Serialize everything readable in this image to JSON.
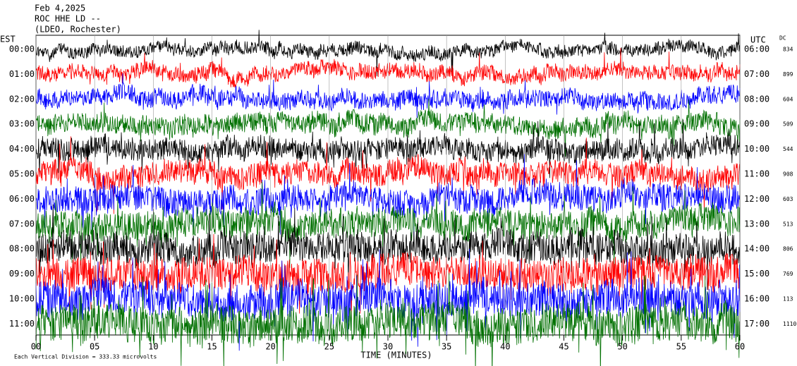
{
  "header": {
    "date": "Feb 4,2025",
    "station": "ROC HHE LD --",
    "location": "(LDEO, Rochester)"
  },
  "left_axis_title": "EST",
  "right_axis_title": "UTC",
  "dc_title": "DC",
  "rows": [
    {
      "est": "00:00",
      "utc": "06:00",
      "dc": 834,
      "color": "#000000"
    },
    {
      "est": "01:00",
      "utc": "07:00",
      "dc": 899,
      "color": "#ff0000"
    },
    {
      "est": "02:00",
      "utc": "08:00",
      "dc": 604,
      "color": "#0000ff"
    },
    {
      "est": "03:00",
      "utc": "09:00",
      "dc": 509,
      "color": "#007000"
    },
    {
      "est": "04:00",
      "utc": "10:00",
      "dc": 544,
      "color": "#000000"
    },
    {
      "est": "05:00",
      "utc": "11:00",
      "dc": 908,
      "color": "#ff0000"
    },
    {
      "est": "06:00",
      "utc": "12:00",
      "dc": 603,
      "color": "#0000ff"
    },
    {
      "est": "07:00",
      "utc": "13:00",
      "dc": 513,
      "color": "#007000"
    },
    {
      "est": "08:00",
      "utc": "14:00",
      "dc": 806,
      "color": "#000000"
    },
    {
      "est": "09:00",
      "utc": "15:00",
      "dc": 769,
      "color": "#ff0000"
    },
    {
      "est": "10:00",
      "utc": "16:00",
      "dc": 113,
      "color": "#0000ff"
    },
    {
      "est": "11:00",
      "utc": "17:00",
      "dc": 1110,
      "color": "#007000"
    }
  ],
  "x_axis": {
    "title": "TIME (MINUTES)",
    "xlim": [
      0,
      60
    ],
    "xticks": [
      {
        "value": 0,
        "label": "00"
      },
      {
        "value": 5,
        "label": "05"
      },
      10,
      15,
      20,
      25,
      30,
      35,
      40,
      45,
      50,
      55,
      60
    ]
  },
  "footer": "Each Vertical Division = 333.33 microvolts"
}
